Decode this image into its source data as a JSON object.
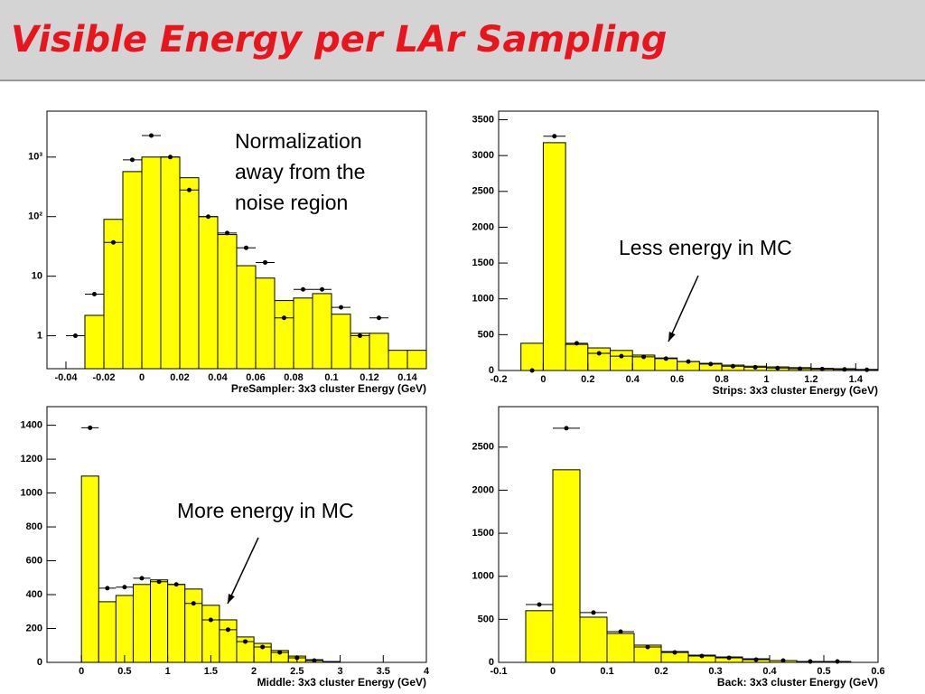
{
  "title": "Visible Energy per LAr Sampling",
  "chart_data": [
    {
      "type": "histogram",
      "log_y": true,
      "color": "#ffff00",
      "point_color": "#000000",
      "x_label": "PreSampler: 3x3 cluster Energy (GeV)",
      "annotation": [
        "Normalization",
        "away from the",
        "noise region"
      ],
      "bins": [
        -0.03,
        -0.02,
        -0.01,
        0,
        0.01,
        0.02,
        0.03,
        0.04,
        0.05,
        0.06,
        0.07,
        0.08,
        0.09,
        0.1,
        0.11,
        0.12,
        0.13,
        0.14,
        0.15
      ],
      "counts": [
        2.2,
        90,
        570,
        1000,
        1000,
        450,
        100,
        50,
        15,
        9.3,
        3.9,
        4.3,
        5.1,
        2.3,
        1.1,
        1.1,
        0.57,
        0.57
      ],
      "points_x": [
        -0.035,
        -0.025,
        -0.015,
        -0.005,
        0.005,
        0.015,
        0.025,
        0.035,
        0.045,
        0.055,
        0.065,
        0.075,
        0.085,
        0.095,
        0.105,
        0.115,
        0.125
      ],
      "points": [
        1,
        5,
        37,
        900,
        2300,
        1000,
        280,
        100,
        53,
        30,
        17,
        2,
        6,
        6,
        3,
        1,
        2
      ],
      "xerr": 0.005,
      "xlim": [
        -0.05,
        0.15
      ],
      "ylim": [
        0.28,
        5900
      ],
      "xticks": [
        -0.04,
        -0.02,
        0,
        0.02,
        0.04,
        0.06,
        0.08,
        0.1,
        0.12,
        0.14
      ],
      "yticks": [
        1,
        10,
        {
          "value": 100,
          "label": "10²"
        },
        {
          "value": 1000,
          "label": "10³"
        }
      ]
    },
    {
      "type": "histogram",
      "log_y": false,
      "color": "#ffff00",
      "point_color": "#000000",
      "x_label": "Strips: 3x3 cluster Energy (GeV)",
      "annotation": [
        "Less energy in MC"
      ],
      "bins": [
        -0.1,
        0,
        0.1,
        0.2,
        0.3,
        0.4,
        0.5,
        0.6,
        0.7,
        0.8,
        0.9,
        1.0,
        1.1,
        1.2,
        1.3,
        1.4,
        1.5
      ],
      "counts": [
        380,
        3180,
        365,
        315,
        280,
        215,
        175,
        125,
        100,
        75,
        60,
        50,
        40,
        30,
        25,
        15
      ],
      "points_x": [
        -0.05,
        0.05,
        0.15,
        0.25,
        0.35,
        0.45,
        0.55,
        0.65,
        0.75,
        0.85,
        0.95,
        1.05,
        1.15,
        1.25,
        1.35,
        1.45
      ],
      "points": [
        0,
        3270,
        380,
        240,
        200,
        190,
        165,
        125,
        90,
        60,
        45,
        35,
        25,
        20,
        15,
        10
      ],
      "xerr": 0.05,
      "xlim": [
        -0.2,
        1.5
      ],
      "ylim": [
        0,
        3620
      ],
      "xticks": [
        -0.2,
        0,
        0.2,
        0.4,
        0.6,
        0.8,
        1,
        1.2,
        1.4
      ],
      "yticks": [
        0,
        500,
        1000,
        1500,
        2000,
        2500,
        3000,
        3500
      ]
    },
    {
      "type": "histogram",
      "log_y": false,
      "color": "#ffff00",
      "point_color": "#000000",
      "x_label": "Middle: 3x3 cluster Energy (GeV)",
      "annotation": [
        "More energy in MC"
      ],
      "bins": [
        0,
        0.2,
        0.4,
        0.6,
        0.8,
        1.0,
        1.2,
        1.4,
        1.6,
        1.8,
        2.0,
        2.2,
        2.4,
        2.6,
        2.8,
        3.0
      ],
      "counts": [
        1100,
        358,
        395,
        460,
        487,
        460,
        433,
        337,
        251,
        150,
        112,
        70,
        37,
        16,
        5
      ],
      "points_x": [
        0.1,
        0.3,
        0.5,
        0.7,
        0.9,
        1.1,
        1.3,
        1.5,
        1.7,
        1.9,
        2.1,
        2.3,
        2.5,
        2.7
      ],
      "points": [
        1385,
        438,
        444,
        497,
        476,
        460,
        348,
        251,
        193,
        123,
        91,
        59,
        27,
        11
      ],
      "xerr": 0.1,
      "xlim": [
        -0.4,
        4
      ],
      "ylim": [
        0,
        1510
      ],
      "xticks": [
        0,
        0.5,
        1,
        1.5,
        2,
        2.5,
        3,
        3.5,
        4
      ],
      "yticks": [
        0,
        200,
        400,
        600,
        800,
        1000,
        1200,
        1400
      ]
    },
    {
      "type": "histogram",
      "log_y": false,
      "color": "#ffff00",
      "point_color": "#000000",
      "x_label": "Back: 3x3 cluster Energy (GeV)",
      "bins": [
        -0.05,
        0,
        0.05,
        0.1,
        0.15,
        0.2,
        0.25,
        0.3,
        0.35,
        0.4,
        0.45,
        0.5,
        0.55
      ],
      "counts": [
        600,
        2237,
        525,
        336,
        200,
        126,
        84,
        63,
        42,
        21,
        10,
        5
      ],
      "points_x": [
        -0.025,
        0.025,
        0.075,
        0.125,
        0.175,
        0.225,
        0.275,
        0.325,
        0.375,
        0.425,
        0.475,
        0.525
      ],
      "points": [
        672,
        2720,
        578,
        357,
        179,
        116,
        74,
        53,
        32,
        21,
        10,
        10
      ],
      "xerr": 0.025,
      "xlim": [
        -0.1,
        0.6
      ],
      "ylim": [
        0,
        2970
      ],
      "xticks": [
        -0.1,
        0,
        0.1,
        0.2,
        0.3,
        0.4,
        0.5,
        0.6
      ],
      "yticks": [
        0,
        500,
        1000,
        1500,
        2000,
        2500
      ]
    }
  ]
}
